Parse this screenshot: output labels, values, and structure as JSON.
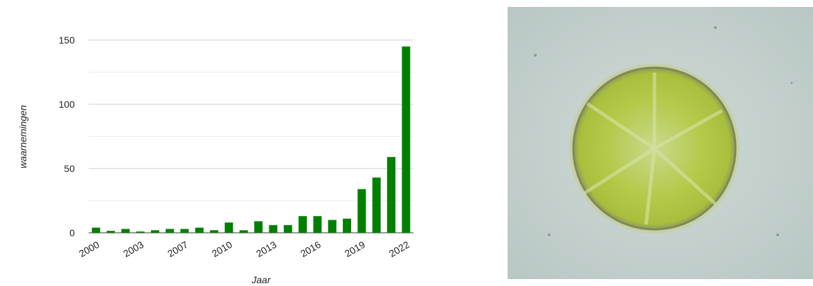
{
  "chart_data": {
    "type": "bar",
    "x_label": "Jaar",
    "y_label": "waarnemingen",
    "categories": [
      "2000",
      null,
      null,
      "2003",
      null,
      null,
      "2007",
      null,
      null,
      "2010",
      null,
      null,
      "2013",
      null,
      null,
      "2016",
      null,
      null,
      "2019",
      null,
      null,
      "2022"
    ],
    "values": [
      4,
      1.5,
      3,
      1,
      2,
      3,
      3,
      4,
      2,
      8,
      2,
      9,
      6,
      6,
      13,
      13,
      10,
      11,
      34,
      43,
      59,
      145
    ],
    "color": "#008000",
    "ylim": [
      0,
      150
    ],
    "yticks": [
      0,
      50,
      100,
      150
    ],
    "minor_yticks": [
      25,
      75,
      125
    ],
    "grid": true
  }
}
